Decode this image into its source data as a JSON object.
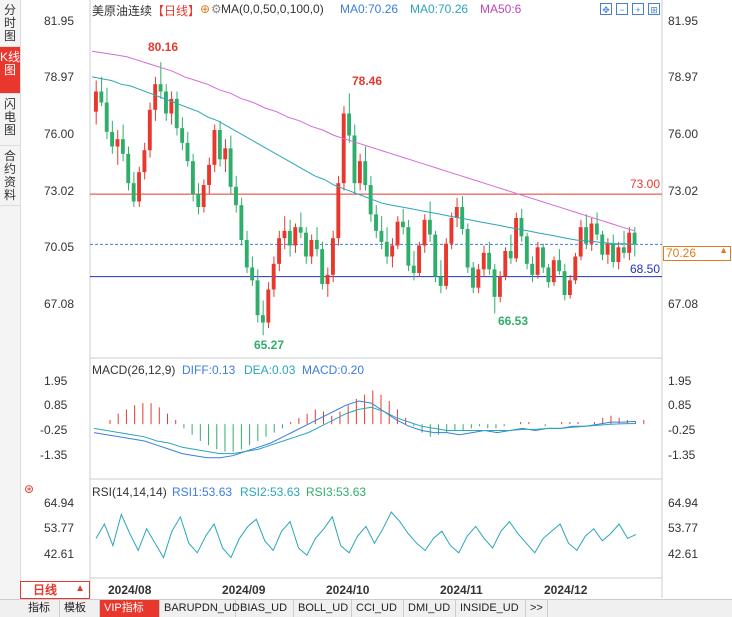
{
  "sidebar": [
    {
      "label": "分时图",
      "active": false
    },
    {
      "label": "K线图",
      "active": true
    },
    {
      "label": "闪电图",
      "active": false
    },
    {
      "label": "合约资料",
      "active": false
    }
  ],
  "header": {
    "symbol": "美原油连续",
    "period": "【日线】",
    "ma_params": "MA(0,0,50,0,100,0)",
    "ma1": "MA0:70.26",
    "ma2": "MA0:70.26",
    "ma3": "MA50:6"
  },
  "price_axis": [
    "81.95",
    "78.97",
    "76.00",
    "73.02",
    "70.05",
    "67.08"
  ],
  "price_annotations": {
    "high1": "80.16",
    "high2": "78.46",
    "low1": "65.27",
    "low2": "66.53",
    "line_red": "73.00",
    "line_blue": "68.50",
    "current": "70.26",
    "current_hidden": "70.05"
  },
  "macd": {
    "title": "MACD(26,12,9)",
    "diff": "DIFF:0.13",
    "dea": "DEA:0.03",
    "macd": "MACD:0.20",
    "axis": [
      "1.95",
      "0.85",
      "-0.25",
      "-1.35"
    ]
  },
  "rsi": {
    "title": "RSI(14,14,14)",
    "rsi1": "RSI1:53.63",
    "rsi2": "RSI2:53.63",
    "rsi3": "RSI3:53.63",
    "axis": [
      "64.94",
      "53.77",
      "42.61"
    ]
  },
  "x_axis": {
    "period_button": "日线",
    "labels": [
      "2024/08",
      "2024/09",
      "2024/10",
      "2024/11",
      "2024/12"
    ]
  },
  "bottom_tabs": [
    "指标",
    "模板",
    "VIP指标",
    "BARUPDN_UD",
    "BIAS_UD",
    "BOLL_UD",
    "CCI_UD",
    "DMI_UD",
    "INSIDE_UD",
    ">>"
  ],
  "colors": {
    "up": "#e8382e",
    "down": "#2fae6b",
    "ma50": "#2aa6b8",
    "ma100": "#d46ad8",
    "accent": "#e8382e"
  },
  "chart_data": {
    "type": "candlestick",
    "title": "美原油连续 【日线】",
    "ylim": [
      64.5,
      82.5
    ],
    "x": [
      "2024/08",
      "2024/09",
      "2024/10",
      "2024/11",
      "2024/12"
    ],
    "ohlc": [
      [
        77.5,
        79.2,
        76.8,
        78.6
      ],
      [
        78.6,
        79.4,
        77.8,
        78.0
      ],
      [
        78.0,
        78.8,
        76.0,
        76.4
      ],
      [
        76.4,
        77.0,
        75.2,
        75.6
      ],
      [
        75.6,
        76.5,
        74.6,
        76.0
      ],
      [
        76.0,
        76.8,
        74.8,
        75.2
      ],
      [
        75.2,
        75.6,
        73.2,
        73.6
      ],
      [
        73.6,
        74.2,
        72.3,
        72.6
      ],
      [
        72.6,
        74.5,
        72.3,
        74.2
      ],
      [
        74.2,
        75.8,
        73.8,
        75.4
      ],
      [
        75.4,
        78.0,
        75.0,
        77.6
      ],
      [
        77.6,
        79.4,
        77.0,
        79.0
      ],
      [
        79.0,
        80.2,
        78.2,
        78.6
      ],
      [
        78.6,
        79.0,
        77.0,
        77.4
      ],
      [
        77.4,
        78.6,
        76.8,
        78.2
      ],
      [
        78.2,
        78.6,
        76.2,
        76.6
      ],
      [
        76.6,
        77.2,
        75.4,
        75.8
      ],
      [
        75.8,
        76.4,
        74.5,
        74.8
      ],
      [
        74.8,
        75.2,
        72.6,
        73.0
      ],
      [
        73.0,
        73.6,
        71.9,
        72.3
      ],
      [
        72.3,
        73.8,
        72.0,
        73.5
      ],
      [
        73.5,
        75.0,
        73.0,
        74.6
      ],
      [
        74.6,
        76.8,
        74.2,
        76.5
      ],
      [
        76.5,
        77.0,
        74.5,
        74.9
      ],
      [
        74.9,
        76.0,
        74.2,
        75.5
      ],
      [
        75.5,
        76.2,
        73.0,
        73.4
      ],
      [
        73.4,
        74.0,
        72.0,
        72.4
      ],
      [
        72.4,
        72.8,
        70.2,
        70.5
      ],
      [
        70.5,
        71.0,
        68.7,
        69.0
      ],
      [
        69.0,
        69.6,
        68.0,
        68.3
      ],
      [
        68.3,
        68.9,
        66.0,
        66.4
      ],
      [
        66.4,
        67.2,
        65.3,
        66.0
      ],
      [
        66.0,
        68.2,
        65.7,
        67.8
      ],
      [
        67.8,
        69.6,
        67.4,
        69.2
      ],
      [
        69.2,
        71.0,
        68.8,
        70.6
      ],
      [
        70.6,
        71.8,
        70.0,
        71.0
      ],
      [
        71.0,
        71.6,
        69.6,
        70.2
      ],
      [
        70.2,
        71.4,
        69.8,
        71.2
      ],
      [
        71.2,
        72.0,
        70.6,
        70.9
      ],
      [
        70.9,
        71.2,
        69.2,
        69.6
      ],
      [
        69.6,
        70.8,
        69.2,
        70.5
      ],
      [
        70.5,
        71.2,
        69.6,
        70.0
      ],
      [
        70.0,
        70.4,
        67.8,
        68.1
      ],
      [
        68.1,
        69.0,
        67.4,
        68.6
      ],
      [
        68.6,
        71.0,
        68.2,
        70.6
      ],
      [
        70.6,
        74.0,
        70.2,
        73.6
      ],
      [
        73.6,
        77.8,
        73.2,
        77.4
      ],
      [
        77.4,
        78.5,
        75.8,
        76.2
      ],
      [
        76.2,
        76.8,
        73.0,
        73.6
      ],
      [
        73.6,
        75.2,
        73.2,
        74.8
      ],
      [
        74.8,
        75.6,
        73.2,
        73.5
      ],
      [
        73.5,
        74.0,
        71.5,
        71.9
      ],
      [
        71.9,
        72.4,
        70.6,
        71.0
      ],
      [
        71.0,
        71.8,
        70.0,
        70.4
      ],
      [
        70.4,
        71.2,
        69.2,
        69.6
      ],
      [
        69.6,
        70.6,
        69.0,
        70.2
      ],
      [
        70.2,
        71.8,
        70.0,
        71.5
      ],
      [
        71.5,
        72.2,
        70.8,
        71.2
      ],
      [
        71.2,
        71.6,
        68.8,
        69.1
      ],
      [
        69.1,
        69.9,
        68.3,
        68.7
      ],
      [
        68.7,
        70.4,
        68.5,
        70.2
      ],
      [
        70.2,
        71.9,
        69.8,
        71.6
      ],
      [
        71.6,
        72.6,
        70.4,
        70.8
      ],
      [
        70.8,
        71.0,
        68.2,
        68.5
      ],
      [
        68.5,
        69.4,
        67.6,
        68.0
      ],
      [
        68.0,
        70.6,
        67.8,
        70.3
      ],
      [
        70.3,
        72.0,
        70.0,
        71.7
      ],
      [
        71.7,
        72.8,
        71.2,
        72.3
      ],
      [
        72.3,
        72.9,
        70.8,
        71.1
      ],
      [
        71.1,
        71.4,
        68.7,
        69.0
      ],
      [
        69.0,
        69.3,
        67.6,
        67.9
      ],
      [
        67.9,
        69.2,
        67.6,
        68.9
      ],
      [
        68.9,
        70.2,
        68.5,
        69.8
      ],
      [
        69.8,
        70.4,
        68.6,
        68.9
      ],
      [
        68.9,
        69.2,
        66.5,
        67.4
      ],
      [
        67.4,
        68.8,
        67.1,
        68.5
      ],
      [
        68.5,
        70.1,
        68.3,
        69.9
      ],
      [
        69.9,
        70.8,
        69.2,
        69.5
      ],
      [
        69.5,
        72.0,
        69.3,
        71.7
      ],
      [
        71.7,
        72.2,
        70.4,
        70.7
      ],
      [
        70.7,
        70.9,
        68.9,
        69.2
      ],
      [
        69.2,
        69.6,
        68.2,
        68.6
      ],
      [
        68.6,
        70.4,
        68.4,
        70.1
      ],
      [
        70.1,
        70.3,
        68.7,
        69.0
      ],
      [
        69.0,
        69.2,
        67.9,
        68.2
      ],
      [
        68.2,
        69.6,
        68.0,
        69.4
      ],
      [
        69.4,
        70.0,
        68.6,
        68.8
      ],
      [
        68.8,
        69.2,
        67.2,
        67.5
      ],
      [
        67.5,
        68.6,
        67.3,
        68.3
      ],
      [
        68.3,
        69.8,
        68.1,
        69.6
      ],
      [
        69.6,
        71.6,
        69.4,
        71.2
      ],
      [
        71.2,
        71.9,
        70.0,
        70.3
      ],
      [
        70.3,
        71.7,
        69.9,
        71.4
      ],
      [
        71.4,
        72.0,
        70.5,
        70.8
      ],
      [
        70.8,
        71.0,
        69.4,
        69.7
      ],
      [
        69.7,
        70.6,
        69.2,
        70.3
      ],
      [
        70.3,
        70.8,
        69.0,
        69.3
      ],
      [
        69.3,
        70.4,
        68.9,
        70.1
      ],
      [
        70.1,
        71.0,
        69.5,
        69.8
      ],
      [
        69.8,
        71.2,
        69.4,
        70.9
      ],
      [
        70.9,
        71.2,
        69.6,
        70.26
      ]
    ],
    "ma50": [
      79.4,
      79.3,
      79.2,
      79.0,
      78.9,
      78.7,
      78.5,
      78.3,
      78.1,
      77.9,
      77.7,
      77.5,
      77.2,
      77.0,
      76.7,
      76.4,
      76.1,
      75.8,
      75.5,
      75.2,
      74.9,
      74.6,
      74.3,
      74.0,
      73.8,
      73.5,
      73.3,
      73.1,
      72.9,
      72.7,
      72.5,
      72.4,
      72.3,
      72.2,
      72.1,
      72.0,
      71.9,
      71.8,
      71.7,
      71.6,
      71.5,
      71.4,
      71.3,
      71.2,
      71.1,
      71.0,
      70.9,
      70.8,
      70.7,
      70.6,
      70.5,
      70.45,
      70.4,
      70.35,
      70.3,
      70.3,
      70.26
    ],
    "ma100": [
      80.8,
      80.7,
      80.6,
      80.5,
      80.3,
      80.1,
      79.9,
      79.7,
      79.4,
      79.2,
      79.0,
      78.7,
      78.5,
      78.2,
      78.0,
      77.7,
      77.5,
      77.2,
      77.0,
      76.7,
      76.5,
      76.2,
      76.0,
      75.8,
      75.6,
      75.4,
      75.2,
      75.0,
      74.8,
      74.6,
      74.4,
      74.2,
      74.0,
      73.8,
      73.6,
      73.4,
      73.2,
      73.0,
      72.8,
      72.6,
      72.4,
      72.2,
      72.0,
      71.8,
      71.6,
      71.4,
      71.2,
      71.0
    ],
    "hlines": [
      {
        "value": 73.0,
        "color": "#e8382e"
      },
      {
        "value": 68.5,
        "color": "#2233bb"
      }
    ],
    "macd_hist": [
      0.2,
      0.5,
      0.7,
      0.9,
      1.0,
      1.0,
      0.8,
      0.5,
      0.2,
      -0.2,
      -0.5,
      -0.8,
      -1.0,
      -1.2,
      -1.3,
      -1.3,
      -1.2,
      -1.0,
      -0.8,
      -0.6,
      -0.4,
      -0.2,
      0.1,
      0.3,
      0.5,
      0.7,
      0.6,
      0.4,
      0.6,
      0.9,
      1.2,
      1.4,
      1.6,
      1.4,
      1.1,
      0.7,
      0.3,
      -0.1,
      -0.4,
      -0.6,
      -0.5,
      -0.4,
      -0.3,
      -0.3,
      -0.2,
      -0.1,
      -0.2,
      -0.2,
      -0.1,
      0.0,
      0.1,
      0.1,
      0.0,
      -0.1,
      0.0,
      0.1,
      0.1,
      0.1,
      0.0,
      0.1,
      0.3,
      0.4,
      0.3,
      0.2,
      0.1,
      0.2
    ],
    "macd_diff": [
      -0.4,
      -0.5,
      -0.6,
      -0.7,
      -0.8,
      -1.0,
      -1.2,
      -1.4,
      -1.5,
      -1.6,
      -1.6,
      -1.5,
      -1.3,
      -1.1,
      -0.9,
      -0.6,
      -0.3,
      0.0,
      0.3,
      0.6,
      0.9,
      1.1,
      1.0,
      0.6,
      0.2,
      -0.1,
      -0.3,
      -0.4,
      -0.4,
      -0.5,
      -0.4,
      -0.3,
      -0.4,
      -0.3,
      -0.2,
      -0.3,
      -0.2,
      -0.2,
      -0.1,
      -0.1,
      0.0,
      0.1,
      0.1,
      0.13
    ],
    "macd_dea": [
      -0.2,
      -0.3,
      -0.4,
      -0.5,
      -0.6,
      -0.8,
      -0.9,
      -1.1,
      -1.2,
      -1.3,
      -1.4,
      -1.4,
      -1.3,
      -1.2,
      -1.0,
      -0.8,
      -0.6,
      -0.4,
      -0.1,
      0.2,
      0.5,
      0.7,
      0.8,
      0.6,
      0.3,
      0.1,
      -0.1,
      -0.2,
      -0.3,
      -0.3,
      -0.3,
      -0.3,
      -0.3,
      -0.3,
      -0.25,
      -0.25,
      -0.2,
      -0.2,
      -0.15,
      -0.1,
      -0.05,
      0.0,
      0.02,
      0.03
    ],
    "rsi": [
      52,
      58,
      49,
      62,
      54,
      47,
      56,
      50,
      44,
      55,
      61,
      50,
      46,
      53,
      58,
      48,
      44,
      52,
      57,
      60,
      51,
      47,
      55,
      59,
      48,
      45,
      52,
      56,
      61,
      49,
      46,
      53,
      57,
      50,
      56,
      63,
      59,
      54,
      50,
      47,
      52,
      55,
      49,
      46,
      53,
      57,
      52,
      48,
      55,
      59,
      54,
      50,
      46,
      52,
      55,
      58,
      50,
      47,
      53,
      56,
      51,
      54,
      58,
      52,
      53.63
    ],
    "rsi_ylim": [
      38,
      68
    ]
  }
}
